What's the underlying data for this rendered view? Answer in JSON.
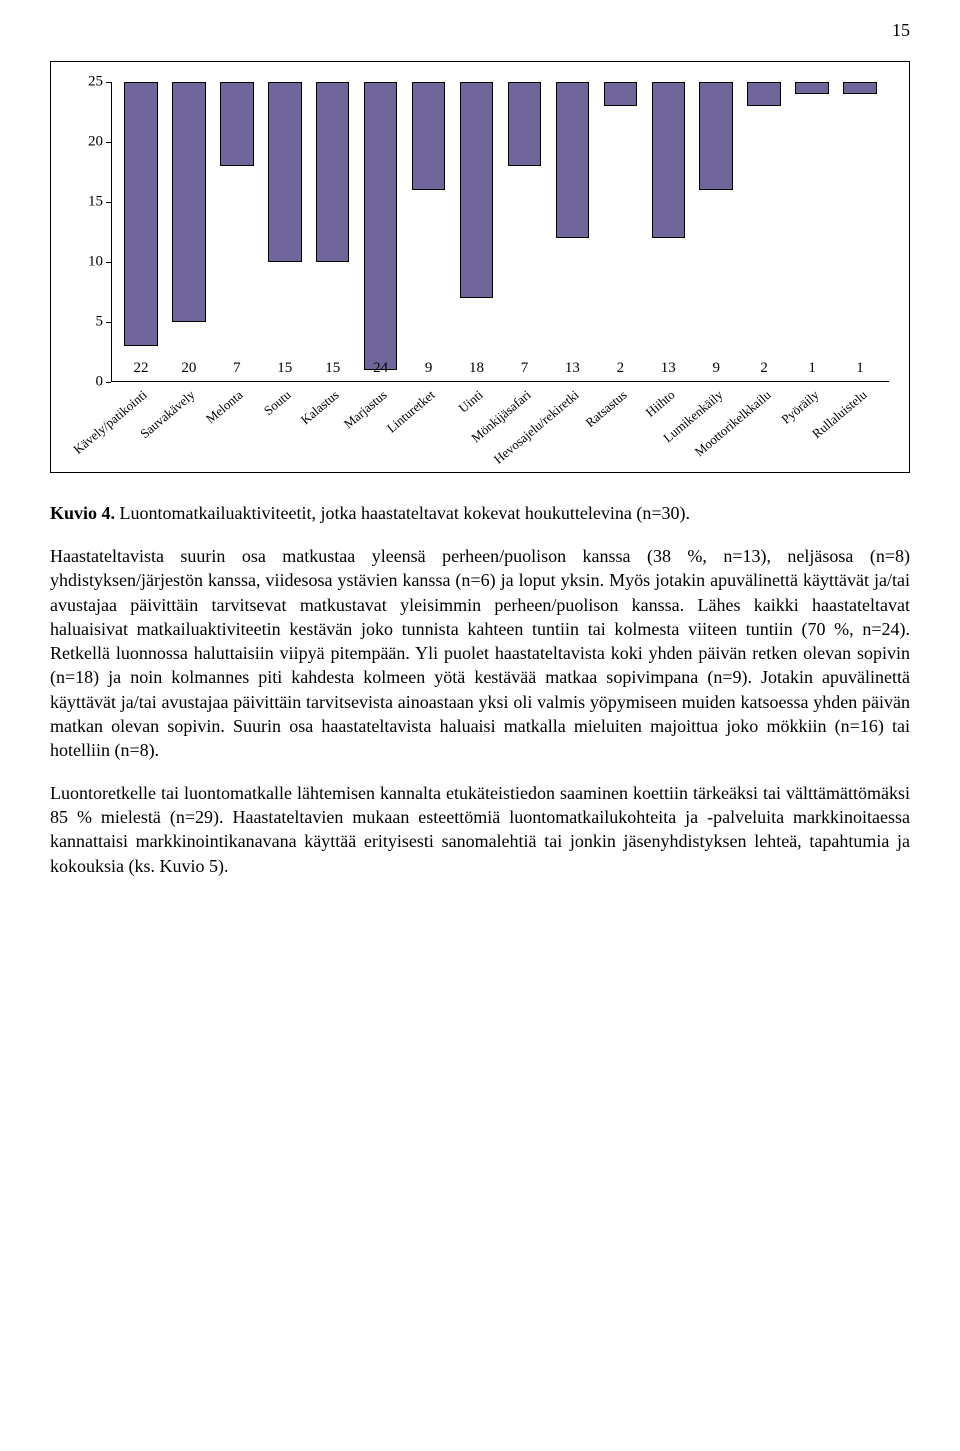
{
  "page_number": "15",
  "chart": {
    "type": "bar",
    "bar_color": "#71669c",
    "bar_border": "#000000",
    "background": "#ffffff",
    "axis_color": "#000000",
    "ylim_max": 25,
    "ytick_step": 5,
    "yticks": [
      0,
      5,
      10,
      15,
      20,
      25
    ],
    "categories": [
      "Kävely/patikointi",
      "Sauvakävely",
      "Melonta",
      "Soutu",
      "Kalastus",
      "Marjastus",
      "Linturetket",
      "Uinti",
      "Mönkijäsafari",
      "Hevosajelu/rekiretki",
      "Ratsastus",
      "Hiihto",
      "Lumikenkäily",
      "Moottorikelkkailu",
      "Pyöräily",
      "Rullaluistelu"
    ],
    "values": [
      22,
      20,
      7,
      15,
      15,
      24,
      9,
      18,
      7,
      13,
      2,
      13,
      9,
      2,
      1,
      1
    ],
    "label_fontsize": 13,
    "value_fontsize": 15,
    "tick_fontsize": 15
  },
  "caption_bold": "Kuvio 4.",
  "caption_rest": " Luontomatkailuaktiviteetit, jotka haastateltavat kokevat houkuttelevina (n=30).",
  "paragraph1": "Haastateltavista suurin osa matkustaa yleensä perheen/puolison kanssa (38 %, n=13), neljäsosa (n=8) yhdistyksen/järjestön kanssa, viidesosa ystävien kanssa (n=6) ja loput yksin. Myös jotakin apuvälinettä käyttävät ja/tai avustajaa päivittäin tarvitsevat matkustavat yleisimmin perheen/puolison kanssa. Lähes kaikki haastateltavat haluaisivat matkailuaktiviteetin kestävän joko tunnista kahteen tuntiin tai kolmesta viiteen tuntiin (70 %, n=24). Retkellä luonnossa haluttaisiin viipyä pitempään. Yli puolet haastateltavista koki yhden päivän retken olevan sopivin (n=18) ja noin kolmannes piti kahdesta kolmeen yötä kestävää matkaa sopivimpana (n=9). Jotakin apuvälinettä käyttävät ja/tai avustajaa päivittäin tarvitsevista ainoastaan yksi oli valmis yöpymiseen muiden katsoessa yhden päivän matkan olevan sopivin. Suurin osa haastateltavista haluaisi matkalla mieluiten majoittua joko mökkiin (n=16) tai hotelliin (n=8).",
  "paragraph2": "Luontoretkelle tai luontomatkalle lähtemisen kannalta etukäteistiedon saaminen koettiin tärkeäksi tai välttämättömäksi 85 % mielestä (n=29). Haastateltavien mukaan esteettömiä luontomatkailukohteita ja -palveluita markkinoitaessa kannattaisi markkinointikanavana käyttää erityisesti sanomalehtiä tai jonkin jäsenyhdistyksen lehteä, tapahtumia ja kokouksia (ks. Kuvio 5)."
}
